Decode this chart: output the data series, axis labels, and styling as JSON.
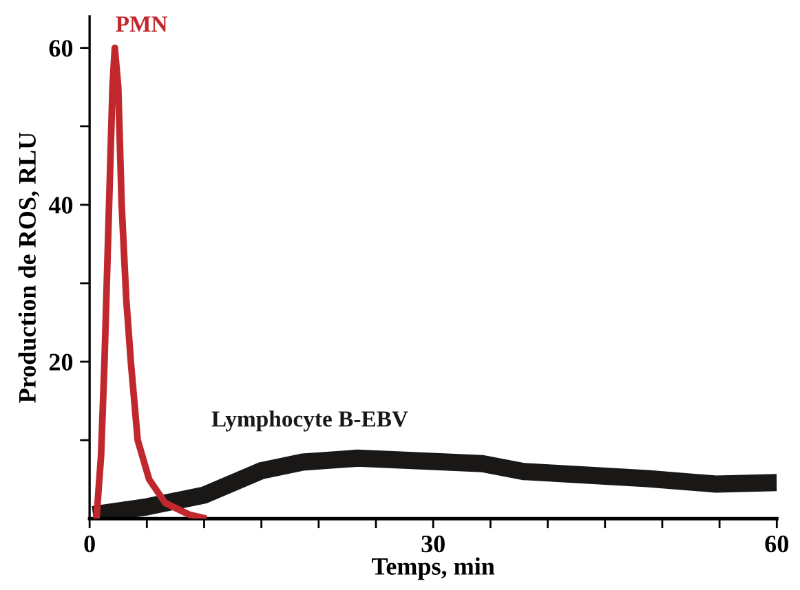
{
  "chart_data": {
    "type": "line",
    "xlabel": "Temps, min",
    "ylabel": "Production de ROS, RLU",
    "xlim": [
      0,
      60
    ],
    "ylim": [
      0,
      64
    ],
    "xticks": [
      0,
      {
        "value": 5,
        "label": null
      },
      {
        "value": 10,
        "label": null
      },
      {
        "value": 15,
        "label": null
      },
      {
        "value": 20,
        "label": null
      },
      {
        "value": 25,
        "label": null
      },
      30,
      {
        "value": 35,
        "label": null
      },
      {
        "value": 40,
        "label": null
      },
      {
        "value": 45,
        "label": null
      },
      {
        "value": 50,
        "label": null
      },
      {
        "value": 55,
        "label": null
      },
      60
    ],
    "yticks": [
      {
        "value": 10,
        "label": null
      },
      20,
      {
        "value": 30,
        "label": null
      },
      40,
      {
        "value": 50,
        "label": null
      },
      60
    ],
    "grid": false,
    "legend": false,
    "marker": "none",
    "line_style": "solid",
    "series": [
      {
        "name": "PMN",
        "color": "#c0282d",
        "x": [
          0.6,
          1.0,
          1.3,
          1.7,
          2.0,
          2.2,
          2.5,
          2.8,
          3.2,
          3.6,
          4.2,
          5.2,
          6.6,
          8.7,
          10.2
        ],
        "values": [
          0,
          8,
          20,
          40,
          55,
          60,
          55,
          40,
          28,
          20,
          10,
          5,
          2,
          0.5,
          0
        ]
      },
      {
        "name": "Lymphocyte B-EBV",
        "color": "#1a1717",
        "x": [
          0.3,
          5,
          10,
          15,
          18.6,
          23.4,
          28.2,
          34.3,
          37.9,
          42.7,
          48.7,
          54.7,
          60
        ],
        "values": [
          0.5,
          1.5,
          3,
          6.1,
          7.2,
          7.7,
          7.4,
          7.0,
          6.0,
          5.6,
          5.1,
          4.4,
          4.6
        ]
      }
    ]
  }
}
